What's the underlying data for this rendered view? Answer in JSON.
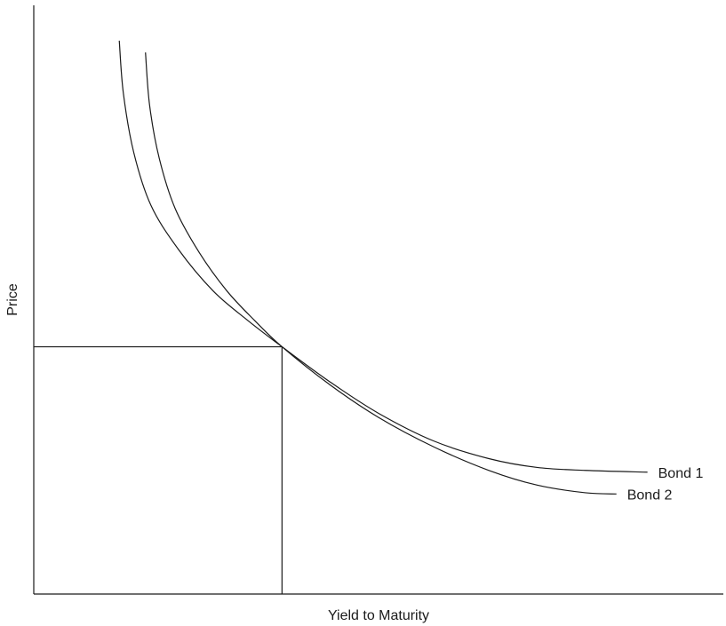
{
  "chart_data": {
    "type": "line",
    "title": "",
    "xlabel": "Yield to Maturity",
    "ylabel": "Price",
    "xlim": [
      0,
      10
    ],
    "ylim": [
      0,
      10
    ],
    "x_ticks": [],
    "y_ticks": [],
    "grid": false,
    "legend": "none",
    "reference_point": {
      "x": 3.6,
      "y": 4.2
    },
    "series": [
      {
        "name": "Bond 1",
        "x": [
          1.24,
          1.3,
          1.45,
          1.7,
          2.1,
          2.6,
          3.1,
          3.6,
          4.3,
          5.0,
          5.8,
          6.6,
          7.3,
          8.0,
          8.9
        ],
        "y": [
          9.4,
          8.5,
          7.5,
          6.6,
          5.85,
          5.15,
          4.65,
          4.2,
          3.6,
          3.07,
          2.6,
          2.3,
          2.15,
          2.1,
          2.07
        ]
      },
      {
        "name": "Bond 2",
        "x": [
          1.62,
          1.68,
          1.82,
          2.05,
          2.4,
          2.8,
          3.2,
          3.6,
          4.3,
          5.0,
          5.8,
          6.6,
          7.3,
          8.0,
          8.45
        ],
        "y": [
          9.2,
          8.3,
          7.4,
          6.55,
          5.8,
          5.15,
          4.65,
          4.2,
          3.55,
          3.0,
          2.5,
          2.1,
          1.85,
          1.72,
          1.7
        ]
      }
    ]
  }
}
